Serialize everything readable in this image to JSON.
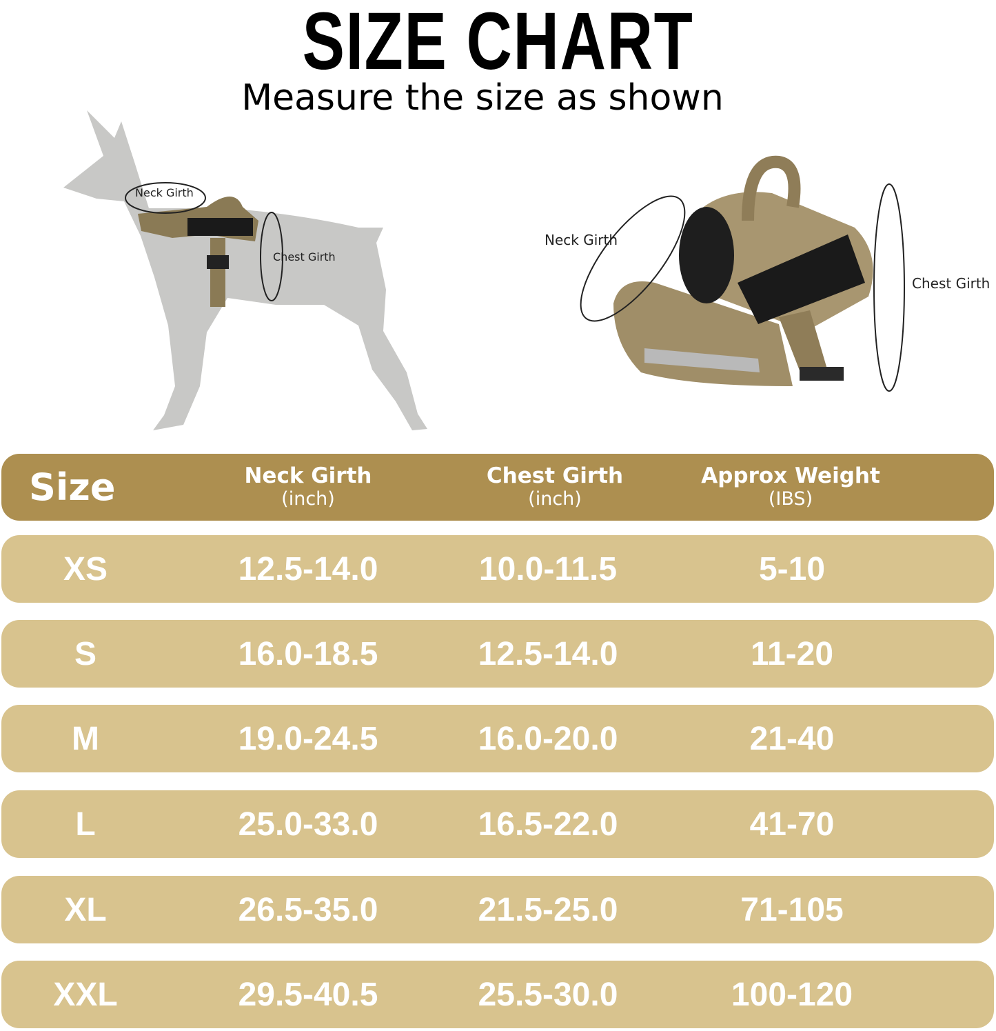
{
  "header": {
    "title": "SIZE CHART",
    "subtitle": "Measure the size as shown"
  },
  "figures": {
    "dog": {
      "neck_label": "Neck Girth",
      "chest_label": "Chest Girth"
    },
    "harness": {
      "neck_label": "Neck Girth",
      "chest_label": "Chest Girth"
    }
  },
  "table": {
    "columns": [
      {
        "label": "Size"
      },
      {
        "label": "Neck Girth",
        "unit": "(inch)"
      },
      {
        "label": "Chest Girth",
        "unit": "(inch)"
      },
      {
        "label": "Approx Weight",
        "unit": "(IBS)"
      }
    ],
    "rows": [
      [
        "XS",
        "12.5-14.0",
        "10.0-11.5",
        "5-10"
      ],
      [
        "S",
        "16.0-18.5",
        "12.5-14.0",
        "11-20"
      ],
      [
        "M",
        "19.0-24.5",
        "16.0-20.0",
        "21-40"
      ],
      [
        "L",
        "25.0-33.0",
        "16.5-22.0",
        "41-70"
      ],
      [
        "XL",
        "26.5-35.0",
        "21.5-25.0",
        "71-105"
      ],
      [
        "XXL",
        "29.5-40.5",
        "25.5-30.0",
        "100-120"
      ]
    ]
  }
}
